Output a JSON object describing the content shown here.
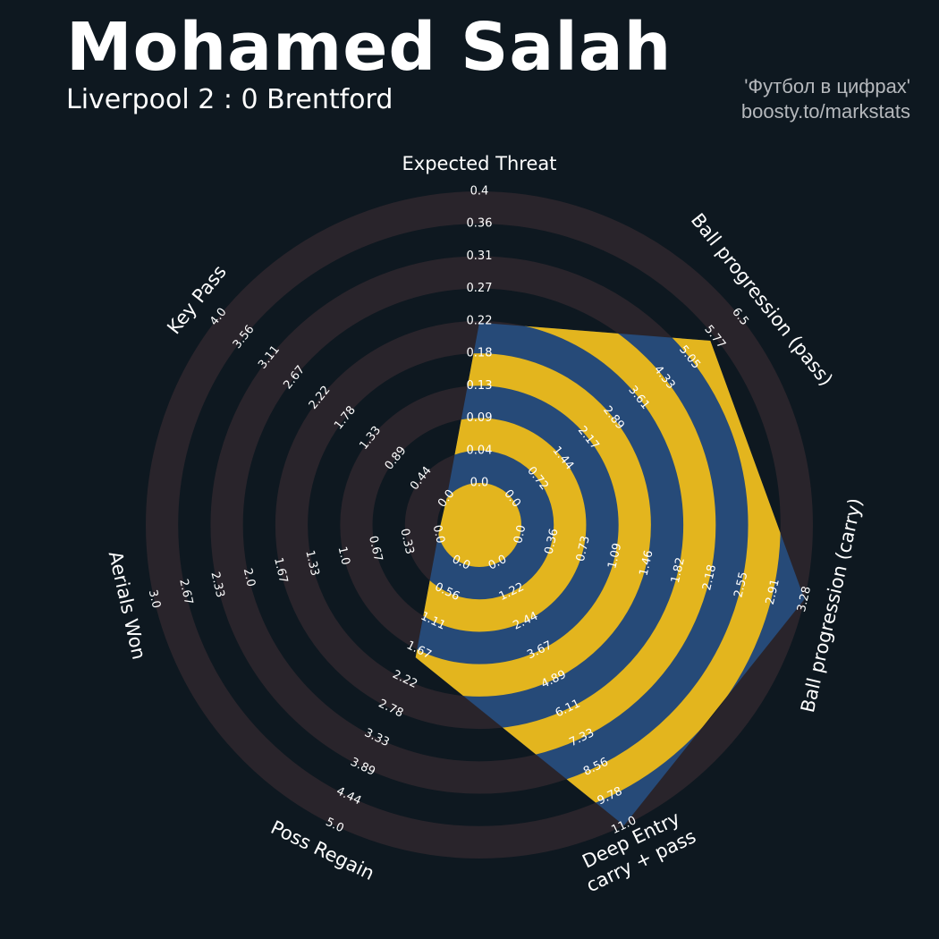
{
  "header": {
    "title": "Mohamed Salah",
    "subtitle": "Liverpool 2 : 0 Brentford",
    "credit_line1": "'Футбол в цифрах'",
    "credit_line2": "boosty.to/markstats"
  },
  "colors": {
    "background": "#0e1820",
    "ring_band": "#29242b",
    "poly_fill": "#264a78",
    "poly_ring": "#e3b51e",
    "text": "#ffffff"
  },
  "chart_data": {
    "type": "radar",
    "title": "Mohamed Salah",
    "subtitle": "Liverpool 2 : 0 Brentford",
    "grid": false,
    "legend": "none",
    "axes": [
      {
        "label": "Expected Threat",
        "min": 0.0,
        "max": 0.4,
        "value": 0.22,
        "ticks": [
          "0.0",
          "0.04",
          "0.09",
          "0.13",
          "0.18",
          "0.22",
          "0.27",
          "0.31",
          "0.36",
          "0.4"
        ]
      },
      {
        "label": "Ball progression (pass)",
        "min": 0.0,
        "max": 6.5,
        "value": 5.65,
        "ticks": [
          "0.0",
          "0.72",
          "1.44",
          "2.17",
          "2.89",
          "3.61",
          "4.33",
          "5.05",
          "5.77",
          "6.5"
        ]
      },
      {
        "label": "Ball progression (carry)",
        "min": 0.0,
        "max": 3.28,
        "value": 3.28,
        "ticks": [
          "0.0",
          "0.36",
          "0.73",
          "1.09",
          "1.46",
          "1.82",
          "2.18",
          "2.55",
          "2.91",
          "3.28"
        ]
      },
      {
        "label": "Deep Entry\ncarry + pass",
        "min": 0.0,
        "max": 11.0,
        "value": 11.0,
        "ticks": [
          "0.0",
          "1.22",
          "2.44",
          "3.67",
          "4.89",
          "6.11",
          "7.33",
          "8.56",
          "9.78",
          "11.0"
        ]
      },
      {
        "label": "Poss Regain",
        "min": 0.0,
        "max": 5.0,
        "value": 1.8,
        "ticks": [
          "0.0",
          "0.56",
          "1.11",
          "1.67",
          "2.22",
          "2.78",
          "3.33",
          "3.89",
          "4.44",
          "5.0"
        ]
      },
      {
        "label": "Aerials Won",
        "min": 0.0,
        "max": 3.0,
        "value": 0.0,
        "ticks": [
          "0.0",
          "0.33",
          "0.67",
          "1.0",
          "1.33",
          "1.67",
          "2.0",
          "2.33",
          "2.67",
          "3.0"
        ]
      },
      {
        "label": "Key Pass",
        "min": 0.0,
        "max": 4.0,
        "value": 0.0,
        "ticks": [
          "0.0",
          "0.44",
          "0.89",
          "1.33",
          "1.78",
          "2.22",
          "2.67",
          "3.11",
          "3.56",
          "4.0"
        ]
      }
    ]
  }
}
